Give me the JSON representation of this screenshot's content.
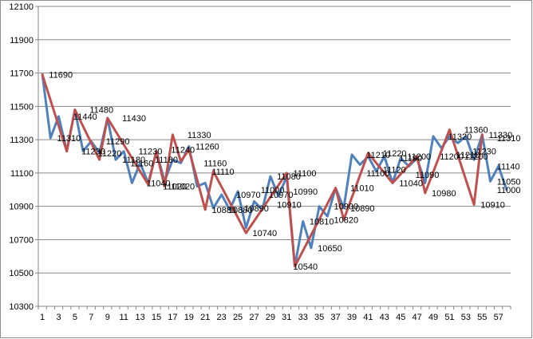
{
  "chart_data": {
    "type": "line",
    "ylim": [
      10300,
      12100
    ],
    "y_ticks": [
      10300,
      10500,
      10700,
      10900,
      11100,
      11300,
      11500,
      11700,
      11900,
      12100
    ],
    "x_tick_labels": [
      1,
      3,
      5,
      7,
      9,
      11,
      13,
      15,
      17,
      19,
      21,
      23,
      25,
      27,
      29,
      31,
      33,
      35,
      37,
      39,
      41,
      43,
      45,
      47,
      49,
      51,
      53,
      55,
      57
    ],
    "grid": true,
    "legend": "none",
    "x": [
      1,
      2,
      3,
      4,
      5,
      6,
      7,
      8,
      9,
      10,
      11,
      12,
      13,
      14,
      15,
      16,
      17,
      18,
      19,
      20,
      21,
      22,
      23,
      24,
      25,
      26,
      27,
      28,
      29,
      30,
      31,
      32,
      33,
      34,
      35,
      36,
      37,
      38,
      39,
      40,
      41,
      42,
      43,
      44,
      45,
      46,
      47,
      48,
      49,
      50,
      51,
      52,
      53,
      54,
      55,
      56,
      57,
      58
    ],
    "series": [
      {
        "color": "#4f81bd",
        "values": [
          11690,
          11310,
          11440,
          11230,
          11480,
          11230,
          11290,
          11220,
          11430,
          11180,
          11230,
          11040,
          11160,
          11040,
          11230,
          11050,
          11180,
          11160,
          11260,
          11020,
          11040,
          10890,
          10970,
          10880,
          10990,
          10770,
          10930,
          10880,
          11080,
          10960,
          11080,
          10540,
          10810,
          10650,
          10900,
          10840,
          11010,
          10890,
          11210,
          11150,
          11200,
          11110,
          11200,
          11040,
          11190,
          11140,
          11190,
          11040,
          11320,
          11250,
          11320,
          11280,
          11320,
          11180,
          11330,
          11050,
          11140,
          11000
        ]
      },
      {
        "color": "#c0504d",
        "values": [
          11690,
          null,
          null,
          11230,
          11480,
          null,
          null,
          11180,
          11430,
          null,
          null,
          null,
          null,
          11030,
          11230,
          11020,
          11330,
          11170,
          11240,
          null,
          10880,
          11110,
          null,
          null,
          null,
          10740,
          null,
          null,
          null,
          null,
          11100,
          10540,
          null,
          null,
          null,
          null,
          11010,
          10820,
          null,
          null,
          11220,
          null,
          null,
          11040,
          null,
          null,
          11200,
          10980,
          null,
          null,
          11360,
          null,
          null,
          10910,
          11330,
          null,
          null,
          null
        ]
      }
    ],
    "data_labels": [
      {
        "x": 2,
        "text": "11690"
      },
      {
        "x": 5,
        "text": "11440"
      },
      {
        "x": 3,
        "text": "11310"
      },
      {
        "x": 7,
        "text": "11480"
      },
      {
        "x": 6,
        "text": "11230"
      },
      {
        "x": 8,
        "text": "11220"
      },
      {
        "x": 9,
        "text": "11290"
      },
      {
        "x": 11,
        "text": "11430"
      },
      {
        "x": 11,
        "text": "11180"
      },
      {
        "x": 12,
        "text": "11160"
      },
      {
        "x": 13,
        "text": "11230"
      },
      {
        "x": 14,
        "text": "11040"
      },
      {
        "x": 15,
        "text": "11180"
      },
      {
        "x": 16,
        "text": "11020"
      },
      {
        "x": 17,
        "text": "11020"
      },
      {
        "x": 17,
        "text": "11240"
      },
      {
        "x": 19,
        "text": "11330"
      },
      {
        "x": 20,
        "text": "11260"
      },
      {
        "x": 21,
        "text": "11160"
      },
      {
        "x": 22,
        "text": "11110"
      },
      {
        "x": 22,
        "text": "10880"
      },
      {
        "x": 24,
        "text": "10880"
      },
      {
        "x": 25,
        "text": "10970"
      },
      {
        "x": 26,
        "text": "10890"
      },
      {
        "x": 27,
        "text": "10740"
      },
      {
        "x": 28,
        "text": "11000"
      },
      {
        "x": 29,
        "text": "10970"
      },
      {
        "x": 30,
        "text": "10910"
      },
      {
        "x": 30,
        "text": "11080"
      },
      {
        "x": 32,
        "text": "11100"
      },
      {
        "x": 32,
        "text": "10990"
      },
      {
        "x": 32,
        "text": "10540"
      },
      {
        "x": 34,
        "text": "10810"
      },
      {
        "x": 35,
        "text": "10650"
      },
      {
        "x": 37,
        "text": "10900"
      },
      {
        "x": 37,
        "text": "10820"
      },
      {
        "x": 39,
        "text": "11010"
      },
      {
        "x": 39,
        "text": "10890"
      },
      {
        "x": 41,
        "text": "11210"
      },
      {
        "x": 43,
        "text": "11220"
      },
      {
        "x": 41,
        "text": "11100"
      },
      {
        "x": 43,
        "text": "11120"
      },
      {
        "x": 45,
        "text": "11190"
      },
      {
        "x": 46,
        "text": "11200"
      },
      {
        "x": 45,
        "text": "11040"
      },
      {
        "x": 47,
        "text": "11090"
      },
      {
        "x": 50,
        "text": "11200"
      },
      {
        "x": 49,
        "text": "10980"
      },
      {
        "x": 51,
        "text": "11320"
      },
      {
        "x": 52,
        "text": "11210"
      },
      {
        "x": 53,
        "text": "11360"
      },
      {
        "x": 53,
        "text": "11200"
      },
      {
        "x": 54,
        "text": "11230"
      },
      {
        "x": 56,
        "text": "11330"
      },
      {
        "x": 57,
        "text": "11310"
      },
      {
        "x": 55,
        "text": "10910"
      },
      {
        "x": 57,
        "text": "11140"
      },
      {
        "x": 57,
        "text": "11050"
      },
      {
        "x": 57,
        "text": "11000"
      }
    ]
  }
}
